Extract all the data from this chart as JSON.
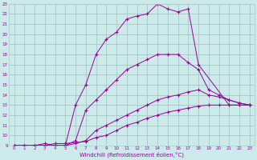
{
  "background_color": "#cceaea",
  "grid_color": "#aacccc",
  "line_color": "#990099",
  "xlim": [
    -0.5,
    23.5
  ],
  "ylim": [
    9,
    23
  ],
  "xlabel": "Windchill (Refroidissement éolien,°C)",
  "xtick_labels": [
    "0",
    "1",
    "2",
    "3",
    "4",
    "5",
    "6",
    "7",
    "8",
    "9",
    "10",
    "11",
    "12",
    "13",
    "14",
    "15",
    "16",
    "17",
    "18",
    "19",
    "20",
    "21",
    "22",
    "23"
  ],
  "ytick_labels": [
    "9",
    "10",
    "11",
    "12",
    "13",
    "14",
    "15",
    "16",
    "17",
    "18",
    "19",
    "20",
    "21",
    "22",
    "23"
  ],
  "lines": [
    {
      "x": [
        0,
        1,
        2,
        3,
        4,
        5,
        6,
        7,
        8,
        9,
        10,
        11,
        12,
        13,
        14,
        15,
        16,
        17,
        18,
        21,
        22,
        23
      ],
      "y": [
        9.0,
        9.0,
        9.0,
        9.0,
        9.0,
        9.0,
        13.0,
        15.0,
        18.0,
        19.5,
        20.2,
        21.5,
        21.8,
        22.0,
        23.0,
        22.5,
        22.2,
        22.5,
        17.0,
        13.0,
        13.0,
        13.0
      ]
    },
    {
      "x": [
        0,
        1,
        2,
        3,
        4,
        5,
        6,
        7,
        8,
        9,
        10,
        11,
        12,
        13,
        14,
        15,
        16,
        17,
        18,
        19,
        20,
        21,
        22,
        23
      ],
      "y": [
        9.0,
        9.0,
        9.0,
        9.0,
        9.0,
        9.0,
        9.5,
        12.5,
        13.5,
        14.5,
        15.5,
        16.5,
        17.0,
        17.5,
        18.0,
        18.0,
        18.0,
        17.2,
        16.5,
        14.5,
        14.0,
        13.5,
        13.2,
        13.0
      ]
    },
    {
      "x": [
        0,
        1,
        2,
        3,
        4,
        5,
        6,
        7,
        8,
        9,
        10,
        11,
        12,
        13,
        14,
        15,
        16,
        17,
        18,
        19,
        20,
        21,
        22,
        23
      ],
      "y": [
        9.0,
        9.0,
        9.0,
        9.2,
        9.0,
        9.0,
        9.2,
        9.5,
        10.5,
        11.0,
        11.5,
        12.0,
        12.5,
        13.0,
        13.5,
        13.8,
        14.0,
        14.3,
        14.5,
        14.0,
        13.8,
        13.5,
        13.2,
        13.0
      ]
    },
    {
      "x": [
        0,
        1,
        2,
        3,
        4,
        5,
        6,
        7,
        8,
        9,
        10,
        11,
        12,
        13,
        14,
        15,
        16,
        17,
        18,
        19,
        20,
        21,
        22,
        23
      ],
      "y": [
        9.0,
        9.0,
        9.0,
        9.0,
        9.2,
        9.2,
        9.3,
        9.4,
        9.8,
        10.0,
        10.5,
        11.0,
        11.3,
        11.7,
        12.0,
        12.3,
        12.5,
        12.7,
        12.9,
        13.0,
        13.0,
        13.0,
        13.0,
        13.0
      ]
    }
  ]
}
